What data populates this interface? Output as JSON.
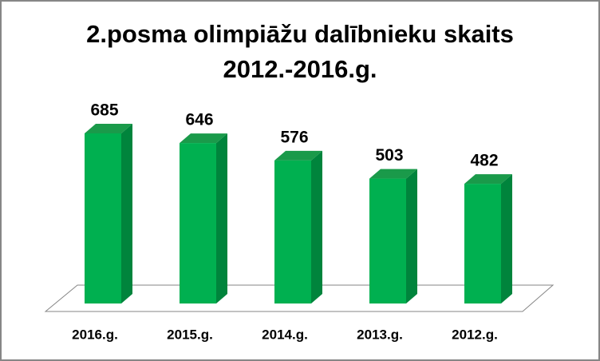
{
  "chart_data": {
    "type": "bar3d",
    "title": [
      "2.posma olimpiāžu dalībnieku skaits",
      "2012.-2016.g."
    ],
    "categories": [
      "2016.g.",
      "2015.g.",
      "2014.g.",
      "2013.g.",
      "2012.g."
    ],
    "values": [
      685,
      646,
      576,
      503,
      482
    ],
    "color": "#00b050"
  }
}
